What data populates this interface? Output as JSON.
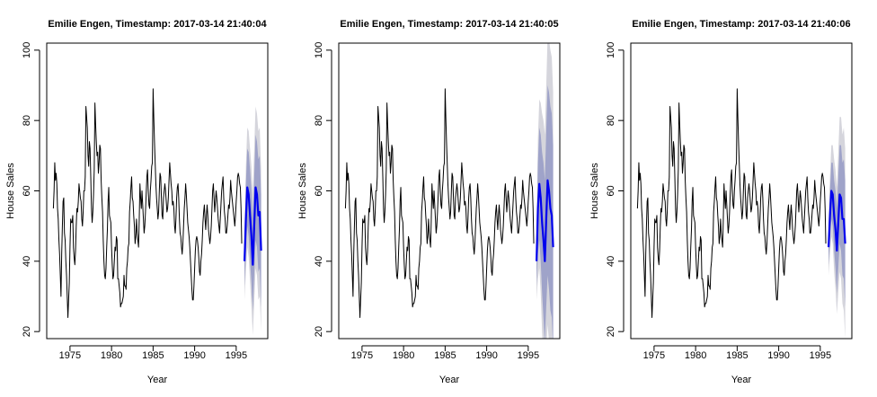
{
  "charts": [
    {
      "type": "line",
      "title": "Emilie Engen, Timestamp: 2017-03-14 21:40:04",
      "xlabel": "Year",
      "ylabel": "House Sales",
      "xlim": [
        1972.2,
        1998.8
      ],
      "ylim": [
        18,
        102
      ],
      "xticks": [
        "1975",
        "1980",
        "1985",
        "1990",
        "1995"
      ],
      "yticks": [
        "20",
        "40",
        "60",
        "80",
        "100"
      ],
      "grid": false,
      "legend": "none",
      "forecast": {
        "x": [
          1996.0,
          1996.1667,
          1996.3333,
          1996.5,
          1996.6667,
          1996.8333,
          1997.0,
          1997.1667,
          1997.3333,
          1997.5,
          1997.6667,
          1997.8333,
          1998.0
        ],
        "mean": [
          40,
          52,
          61,
          59,
          53,
          47,
          39,
          50,
          61,
          59,
          53,
          54,
          43
        ],
        "lo80": [
          33,
          42,
          50,
          47,
          40,
          34,
          26,
          36,
          46,
          44,
          37,
          38,
          27
        ],
        "hi80": [
          47,
          62,
          72,
          71,
          66,
          60,
          52,
          64,
          76,
          74,
          69,
          70,
          59
        ],
        "lo95": [
          29,
          37,
          44,
          41,
          34,
          27,
          19,
          28,
          38,
          36,
          29,
          30,
          20
        ],
        "hi95": [
          51,
          67,
          78,
          77,
          72,
          67,
          59,
          72,
          84,
          82,
          77,
          78,
          66
        ]
      }
    },
    {
      "type": "line",
      "title": "Emilie Engen, Timestamp: 2017-03-14 21:40:05",
      "xlabel": "Year",
      "ylabel": "House Sales",
      "xlim": [
        1972.2,
        1998.8
      ],
      "ylim": [
        18,
        102
      ],
      "xticks": [
        "1975",
        "1980",
        "1985",
        "1990",
        "1995"
      ],
      "yticks": [
        "20",
        "40",
        "60",
        "80",
        "100"
      ],
      "grid": false,
      "legend": "none",
      "forecast": {
        "x": [
          1996.0,
          1996.1667,
          1996.3333,
          1996.5,
          1996.6667,
          1996.8333,
          1997.0,
          1997.1667,
          1997.3333,
          1997.5,
          1997.6667,
          1997.8333,
          1998.0
        ],
        "mean": [
          40,
          55,
          62,
          58,
          51,
          46,
          40,
          52,
          63,
          60,
          55,
          53,
          44
        ],
        "lo80": [
          33,
          42,
          46,
          40,
          31,
          24,
          17,
          27,
          36,
          32,
          26,
          24,
          15
        ],
        "hi80": [
          47,
          68,
          78,
          76,
          71,
          68,
          63,
          77,
          90,
          88,
          84,
          82,
          73
        ],
        "lo95": [
          29,
          35,
          38,
          31,
          20,
          12,
          4,
          14,
          22,
          17,
          10,
          8,
          0
        ],
        "hi95": [
          51,
          75,
          86,
          85,
          82,
          80,
          76,
          90,
          104,
          103,
          100,
          98,
          88
        ]
      }
    },
    {
      "type": "line",
      "title": "Emilie Engen, Timestamp: 2017-03-14 21:40:06",
      "xlabel": "Year",
      "ylabel": "House Sales",
      "xlim": [
        1972.2,
        1998.8
      ],
      "ylim": [
        18,
        102
      ],
      "xticks": [
        "1975",
        "1980",
        "1985",
        "1990",
        "1995"
      ],
      "yticks": [
        "20",
        "40",
        "60",
        "80",
        "100"
      ],
      "grid": false,
      "legend": "none",
      "forecast": {
        "x": [
          1996.0,
          1996.1667,
          1996.3333,
          1996.5,
          1996.6667,
          1996.8333,
          1997.0,
          1997.1667,
          1997.3333,
          1997.5,
          1997.6667,
          1997.8333,
          1998.0
        ],
        "mean": [
          44,
          53,
          60,
          59,
          53,
          49,
          43,
          51,
          59,
          58,
          52,
          52,
          45
        ],
        "lo80": [
          39,
          46,
          52,
          50,
          43,
          38,
          31,
          38,
          45,
          43,
          36,
          35,
          27
        ],
        "hi80": [
          49,
          60,
          68,
          68,
          63,
          60,
          55,
          64,
          73,
          73,
          68,
          69,
          63
        ],
        "lo95": [
          36,
          42,
          47,
          45,
          37,
          32,
          25,
          31,
          37,
          35,
          28,
          26,
          18
        ],
        "hi95": [
          52,
          64,
          73,
          73,
          69,
          66,
          61,
          71,
          81,
          81,
          76,
          78,
          72
        ]
      }
    }
  ],
  "chart_data": {
    "type": "line",
    "x_start": 1973.0,
    "x_step": 0.083333,
    "values": [
      55,
      60,
      68,
      63,
      65,
      62,
      55,
      52,
      46,
      42,
      36,
      30,
      42,
      50,
      57,
      58,
      48,
      46,
      40,
      36,
      30,
      24,
      29,
      34,
      44,
      52,
      51,
      51,
      53,
      44,
      41,
      39,
      43,
      50,
      55,
      54,
      57,
      62,
      60,
      58,
      57,
      52,
      50,
      54,
      60,
      60,
      64,
      84,
      81,
      78,
      70,
      67,
      74,
      72,
      64,
      55,
      51,
      54,
      59,
      66,
      85,
      79,
      74,
      70,
      71,
      65,
      68,
      73,
      72,
      63,
      58,
      54,
      46,
      40,
      36,
      35,
      38,
      44,
      49,
      57,
      61,
      53,
      52,
      51,
      44,
      39,
      35,
      36,
      40,
      44,
      43,
      47,
      46,
      35,
      35,
      33,
      31,
      27,
      28,
      28,
      29,
      30,
      36,
      33,
      33,
      32,
      38,
      40,
      44,
      45,
      54,
      57,
      61,
      64,
      58,
      57,
      53,
      50,
      45,
      47,
      52,
      48,
      46,
      44,
      52,
      62,
      58,
      55,
      60,
      56,
      52,
      48,
      50,
      54,
      59,
      64,
      66,
      60,
      56,
      55,
      60,
      63,
      67,
      68,
      89,
      81,
      74,
      68,
      62,
      58,
      55,
      52,
      54,
      60,
      65,
      64,
      58,
      53,
      52,
      58,
      60,
      62,
      60,
      57,
      54,
      55,
      58,
      63,
      68,
      65,
      62,
      60,
      56,
      57,
      55,
      50,
      48,
      52,
      58,
      61,
      62,
      58,
      52,
      48,
      47,
      44,
      42,
      45,
      50,
      55,
      58,
      62,
      59,
      55,
      51,
      49,
      47,
      44,
      40,
      36,
      32,
      29,
      29,
      33,
      38,
      43,
      46,
      47,
      46,
      44,
      41,
      37,
      36,
      40,
      42,
      46,
      51,
      54,
      56,
      52,
      49,
      53,
      56,
      53,
      49,
      47,
      45,
      47,
      50,
      55,
      60,
      62,
      58,
      54,
      57,
      60,
      58,
      55,
      52,
      50,
      48,
      52,
      56,
      60,
      62,
      64,
      58,
      54,
      52,
      48,
      48,
      50,
      53,
      56,
      55,
      58,
      63,
      60,
      58,
      56,
      54,
      52,
      50,
      53,
      57,
      60,
      64,
      65,
      64,
      62,
      61,
      55,
      45
    ]
  }
}
